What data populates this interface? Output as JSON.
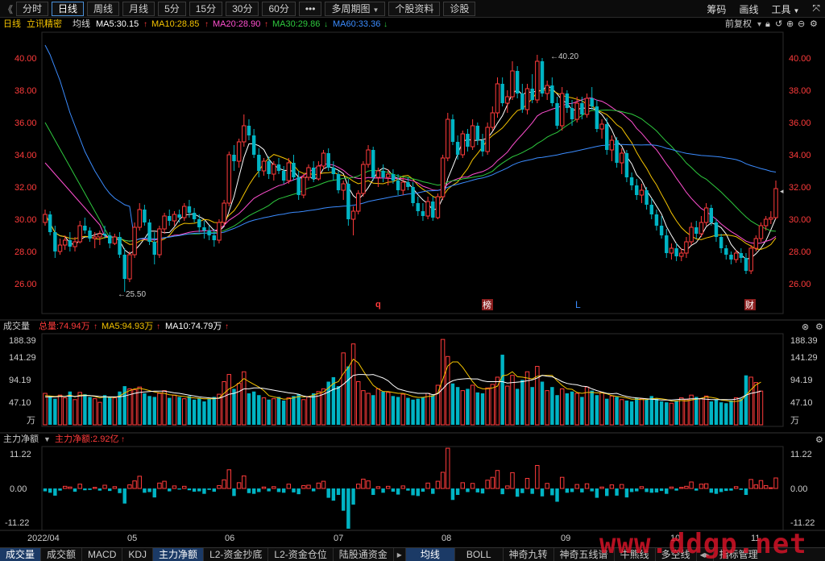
{
  "toolbar": {
    "back_label": "《",
    "tabs": [
      {
        "label": "分时"
      },
      {
        "label": "日线"
      },
      {
        "label": "周线"
      },
      {
        "label": "月线"
      },
      {
        "label": "5分"
      },
      {
        "label": "15分"
      },
      {
        "label": "30分"
      },
      {
        "label": "60分"
      },
      {
        "label": "•••"
      },
      {
        "label": "多周期图"
      },
      {
        "label": "个股资料"
      },
      {
        "label": "诊股"
      }
    ],
    "right": [
      "筹码",
      "画线",
      "工具"
    ]
  },
  "info": {
    "period": "日线",
    "stock": "立讯精密",
    "ma_label": "均线",
    "ma5": "MA5:30.15",
    "ma10": "MA10:28.85",
    "ma20": "MA20:28.90",
    "ma30": "MA30:29.86",
    "ma60": "MA60:33.36",
    "fq": "前复权"
  },
  "price_axis": [
    "40.00",
    "38.00",
    "36.00",
    "34.00",
    "32.00",
    "30.00",
    "28.00",
    "26.00"
  ],
  "price_annotations": {
    "high": "40.20",
    "low": "25.50"
  },
  "event_markers": [
    {
      "text": "q"
    },
    {
      "text": "榜"
    },
    {
      "text": "L"
    },
    {
      "text": "财"
    }
  ],
  "volume_panel": {
    "title": "成交量",
    "total": "总量:74.94万",
    "ma5": "MA5:94.93万",
    "ma10": "MA10:74.79万",
    "axis": [
      "188.39",
      "141.29",
      "94.19",
      "47.10",
      "万"
    ]
  },
  "flow_panel": {
    "title": "主力净额",
    "value": "主力净额:2.92亿",
    "axis": [
      "11.22",
      "0.00",
      "-11.22"
    ]
  },
  "date_axis": [
    "2022/04",
    "05",
    "06",
    "07",
    "08",
    "09",
    "10",
    "11"
  ],
  "bottom_tabs": [
    {
      "label": "成交量"
    },
    {
      "label": "成交额"
    },
    {
      "label": "MACD"
    },
    {
      "label": "KDJ"
    },
    {
      "label": "主力净额"
    },
    {
      "label": "L2-资金抄底"
    },
    {
      "label": "L2-资金仓位"
    },
    {
      "label": "陆股通资金"
    },
    {
      "label": "均线"
    },
    {
      "label": "BOLL"
    },
    {
      "label": "神奇九转"
    },
    {
      "label": "神奇五线谱"
    },
    {
      "label": "牛熊线"
    },
    {
      "label": "多空线"
    },
    {
      "label": "指标管理"
    }
  ],
  "watermark": "www.ddgp.net",
  "colors": {
    "up": "#ff3b3b",
    "down": "#00b4c4",
    "ma5": "#ffffff",
    "ma10": "#f5c400",
    "ma20": "#ff4fd0",
    "ma30": "#2ec93e",
    "ma60": "#3b8cff"
  },
  "chart_data": {
    "type": "candlestick",
    "price_range": [
      25,
      41
    ],
    "x_start": "2022/04",
    "candles": [
      [
        29.8,
        30.6,
        29.6,
        30.3
      ],
      [
        30.3,
        30.5,
        29.0,
        29.2
      ],
      [
        29.2,
        29.6,
        27.6,
        28.0
      ],
      [
        28.0,
        28.8,
        27.8,
        28.4
      ],
      [
        28.4,
        29.0,
        28.1,
        28.7
      ],
      [
        28.7,
        29.2,
        28.0,
        28.3
      ],
      [
        28.3,
        28.9,
        28.0,
        28.6
      ],
      [
        28.6,
        29.9,
        28.5,
        29.6
      ],
      [
        29.6,
        30.1,
        29.1,
        29.3
      ],
      [
        29.3,
        29.5,
        28.6,
        28.8
      ],
      [
        28.8,
        29.2,
        28.2,
        28.9
      ],
      [
        28.9,
        29.3,
        28.4,
        29.1
      ],
      [
        29.1,
        29.6,
        28.8,
        29.0
      ],
      [
        29.0,
        29.2,
        28.2,
        28.5
      ],
      [
        28.5,
        29.1,
        28.4,
        28.9
      ],
      [
        28.9,
        29.2,
        27.6,
        27.8
      ],
      [
        27.8,
        28.2,
        25.5,
        26.3
      ],
      [
        26.3,
        28.0,
        26.1,
        27.8
      ],
      [
        27.8,
        29.8,
        27.6,
        29.5
      ],
      [
        29.5,
        31.0,
        29.3,
        30.6
      ],
      [
        30.6,
        30.9,
        29.6,
        29.8
      ],
      [
        29.8,
        30.0,
        28.4,
        28.6
      ],
      [
        28.6,
        29.2,
        27.2,
        27.8
      ],
      [
        27.8,
        29.6,
        27.6,
        29.4
      ],
      [
        29.4,
        30.4,
        29.1,
        30.2
      ],
      [
        30.2,
        30.6,
        29.6,
        29.9
      ],
      [
        29.9,
        30.5,
        29.6,
        30.3
      ],
      [
        30.3,
        30.6,
        29.8,
        30.1
      ],
      [
        30.1,
        31.0,
        29.9,
        30.8
      ],
      [
        30.8,
        31.2,
        30.1,
        30.4
      ],
      [
        30.4,
        30.7,
        29.8,
        30.0
      ],
      [
        30.0,
        30.3,
        29.2,
        29.5
      ],
      [
        29.5,
        29.9,
        28.8,
        29.3
      ],
      [
        29.3,
        29.6,
        28.7,
        29.0
      ],
      [
        29.0,
        29.4,
        28.3,
        28.7
      ],
      [
        28.7,
        30.0,
        28.5,
        29.8
      ],
      [
        29.8,
        31.2,
        29.6,
        31.0
      ],
      [
        31.0,
        34.2,
        30.8,
        34.0
      ],
      [
        34.0,
        34.6,
        33.0,
        33.6
      ],
      [
        33.6,
        35.0,
        33.2,
        34.8
      ],
      [
        34.8,
        36.5,
        34.5,
        35.8
      ],
      [
        35.8,
        36.2,
        34.9,
        35.2
      ],
      [
        35.2,
        35.6,
        33.8,
        34.0
      ],
      [
        34.0,
        34.4,
        32.6,
        33.0
      ],
      [
        33.0,
        33.8,
        32.7,
        33.6
      ],
      [
        33.6,
        33.9,
        32.5,
        32.8
      ],
      [
        32.8,
        33.6,
        32.4,
        33.4
      ],
      [
        33.4,
        33.8,
        32.8,
        33.0
      ],
      [
        33.0,
        33.3,
        32.2,
        32.4
      ],
      [
        32.4,
        33.8,
        32.2,
        33.5
      ],
      [
        33.5,
        34.0,
        32.4,
        32.6
      ],
      [
        32.6,
        33.0,
        31.2,
        31.5
      ],
      [
        31.5,
        32.8,
        31.3,
        32.6
      ],
      [
        32.6,
        33.4,
        32.4,
        33.2
      ],
      [
        33.2,
        33.6,
        32.3,
        32.5
      ],
      [
        32.5,
        33.6,
        32.4,
        33.3
      ],
      [
        33.3,
        34.3,
        33.1,
        34.1
      ],
      [
        34.1,
        34.4,
        33.0,
        33.2
      ],
      [
        33.2,
        33.6,
        32.4,
        32.8
      ],
      [
        32.8,
        33.0,
        31.6,
        31.8
      ],
      [
        31.8,
        32.4,
        31.2,
        32.2
      ],
      [
        32.2,
        32.5,
        29.6,
        30.0
      ],
      [
        30.0,
        30.8,
        29.0,
        30.5
      ],
      [
        30.5,
        31.8,
        30.3,
        31.6
      ],
      [
        31.6,
        33.6,
        31.4,
        33.4
      ],
      [
        33.4,
        34.6,
        33.2,
        34.3
      ],
      [
        34.3,
        34.5,
        32.4,
        32.6
      ],
      [
        32.6,
        33.2,
        32.0,
        33.0
      ],
      [
        33.0,
        33.4,
        32.3,
        32.6
      ],
      [
        32.6,
        33.1,
        32.1,
        32.8
      ],
      [
        32.8,
        33.1,
        32.2,
        32.4
      ],
      [
        32.4,
        32.8,
        31.5,
        31.8
      ],
      [
        31.8,
        32.6,
        31.5,
        32.3
      ],
      [
        32.3,
        32.6,
        31.8,
        32.0
      ],
      [
        32.0,
        32.3,
        30.8,
        31.0
      ],
      [
        31.0,
        31.4,
        30.2,
        30.5
      ],
      [
        30.5,
        31.0,
        29.9,
        30.2
      ],
      [
        30.2,
        31.4,
        30.0,
        31.1
      ],
      [
        31.1,
        31.4,
        29.9,
        30.1
      ],
      [
        30.1,
        31.6,
        30.0,
        31.4
      ],
      [
        31.4,
        34.0,
        31.2,
        33.8
      ],
      [
        33.8,
        36.6,
        33.6,
        36.2
      ],
      [
        36.2,
        36.5,
        34.6,
        34.8
      ],
      [
        34.8,
        35.2,
        33.7,
        34.0
      ],
      [
        34.0,
        35.5,
        33.8,
        35.3
      ],
      [
        35.3,
        35.6,
        34.2,
        34.5
      ],
      [
        34.5,
        36.2,
        34.3,
        35.8
      ],
      [
        35.8,
        36.0,
        34.6,
        34.9
      ],
      [
        34.9,
        35.3,
        33.9,
        34.2
      ],
      [
        34.2,
        36.0,
        34.0,
        35.7
      ],
      [
        35.7,
        37.0,
        35.5,
        36.6
      ],
      [
        36.6,
        38.8,
        36.3,
        38.4
      ],
      [
        38.4,
        38.8,
        37.0,
        37.2
      ],
      [
        37.2,
        38.0,
        36.6,
        37.6
      ],
      [
        37.6,
        39.8,
        37.4,
        39.2
      ],
      [
        39.2,
        39.5,
        37.5,
        37.8
      ],
      [
        37.8,
        38.4,
        36.6,
        36.8
      ],
      [
        36.8,
        38.4,
        36.5,
        38.1
      ],
      [
        38.1,
        39.0,
        37.2,
        37.4
      ],
      [
        37.4,
        40.2,
        37.2,
        39.8
      ],
      [
        39.8,
        40.0,
        37.6,
        37.8
      ],
      [
        37.8,
        38.6,
        37.4,
        38.3
      ],
      [
        38.3,
        38.8,
        37.0,
        37.2
      ],
      [
        37.2,
        37.6,
        35.6,
        35.8
      ],
      [
        35.8,
        38.2,
        35.5,
        37.8
      ],
      [
        37.8,
        38.0,
        36.6,
        36.9
      ],
      [
        36.9,
        37.4,
        35.8,
        36.2
      ],
      [
        36.2,
        37.6,
        36.0,
        37.2
      ],
      [
        37.2,
        37.6,
        36.2,
        36.5
      ],
      [
        36.5,
        37.8,
        36.3,
        37.5
      ],
      [
        37.5,
        38.2,
        36.8,
        37.0
      ],
      [
        37.0,
        37.4,
        35.4,
        35.6
      ],
      [
        35.6,
        36.2,
        35.0,
        35.9
      ],
      [
        35.9,
        36.3,
        34.0,
        34.3
      ],
      [
        34.3,
        35.2,
        33.6,
        34.9
      ],
      [
        34.9,
        35.1,
        33.2,
        33.5
      ],
      [
        33.5,
        34.4,
        32.8,
        34.1
      ],
      [
        34.1,
        34.3,
        32.3,
        32.6
      ],
      [
        32.6,
        32.9,
        31.8,
        32.1
      ],
      [
        32.1,
        32.5,
        31.2,
        31.5
      ],
      [
        31.5,
        32.2,
        31.0,
        31.8
      ],
      [
        31.8,
        32.0,
        30.6,
        30.9
      ],
      [
        30.9,
        31.3,
        30.0,
        30.3
      ],
      [
        30.3,
        30.6,
        29.3,
        29.6
      ],
      [
        29.6,
        30.2,
        28.8,
        29.0
      ],
      [
        29.0,
        29.4,
        27.6,
        27.9
      ],
      [
        27.9,
        28.5,
        27.5,
        28.2
      ],
      [
        28.2,
        28.5,
        27.4,
        27.7
      ],
      [
        27.7,
        28.2,
        27.4,
        27.9
      ],
      [
        27.9,
        28.9,
        27.6,
        28.6
      ],
      [
        28.6,
        29.8,
        28.4,
        29.5
      ],
      [
        29.5,
        29.9,
        28.8,
        29.1
      ],
      [
        29.1,
        30.2,
        28.9,
        29.8
      ],
      [
        29.8,
        31.0,
        29.6,
        30.7
      ],
      [
        30.7,
        30.9,
        29.6,
        29.8
      ],
      [
        29.8,
        30.0,
        28.6,
        28.9
      ],
      [
        28.9,
        29.1,
        27.9,
        28.2
      ],
      [
        28.2,
        28.4,
        27.5,
        27.8
      ],
      [
        27.8,
        28.0,
        27.2,
        27.5
      ],
      [
        27.5,
        28.1,
        27.3,
        27.9
      ],
      [
        27.9,
        28.2,
        27.3,
        27.6
      ],
      [
        27.6,
        27.9,
        26.6,
        26.8
      ],
      [
        26.8,
        28.4,
        26.6,
        28.2
      ],
      [
        28.2,
        29.0,
        28.0,
        28.8
      ],
      [
        28.8,
        29.8,
        28.6,
        29.6
      ],
      [
        29.6,
        30.2,
        29.3,
        30.0
      ],
      [
        30.0,
        30.5,
        29.7,
        30.1
      ],
      [
        30.1,
        32.4,
        30.0,
        31.9
      ]
    ],
    "volume": [
      70,
      64,
      58,
      66,
      60,
      74,
      56,
      72,
      68,
      62,
      58,
      50,
      66,
      62,
      60,
      74,
      86,
      80,
      78,
      84,
      70,
      64,
      62,
      70,
      76,
      60,
      66,
      62,
      58,
      64,
      56,
      60,
      52,
      58,
      62,
      68,
      96,
      112,
      80,
      92,
      118,
      70,
      74,
      66,
      60,
      56,
      58,
      62,
      54,
      60,
      64,
      68,
      56,
      62,
      70,
      74,
      80,
      96,
      106,
      86,
      160,
      130,
      180,
      96,
      76,
      70,
      66,
      80,
      74,
      72,
      64,
      62,
      68,
      60,
      56,
      58,
      62,
      70,
      66,
      88,
      190,
      152,
      92,
      84,
      76,
      80,
      88,
      72,
      70,
      82,
      90,
      106,
      156,
      86,
      110,
      80,
      100,
      118,
      84,
      130,
      96,
      76,
      84,
      66,
      80,
      70,
      74,
      70,
      62,
      84,
      76,
      66,
      72,
      58,
      64,
      62,
      56,
      54,
      52,
      60,
      58,
      56,
      64,
      58,
      52,
      50,
      48,
      54,
      60,
      56,
      66,
      62,
      58,
      64,
      52,
      56,
      50,
      48,
      54,
      60,
      58,
      110,
      106,
      94,
      75
    ],
    "volume_ma5": [
      65,
      64,
      63,
      64,
      63,
      66,
      62,
      66,
      66,
      65,
      63,
      60,
      62,
      61,
      61,
      64,
      71,
      76,
      80,
      81,
      79,
      76,
      73,
      71,
      70,
      67,
      66,
      64,
      63,
      61,
      60,
      59,
      58,
      58,
      58,
      60,
      70,
      80,
      85,
      93,
      103,
      96,
      90,
      84,
      76,
      65,
      62,
      60,
      57,
      58,
      60,
      63,
      62,
      63,
      66,
      70,
      73,
      82,
      92,
      96,
      114,
      128,
      146,
      138,
      120,
      103,
      88,
      80,
      74,
      74,
      72,
      70,
      70,
      67,
      63,
      61,
      61,
      63,
      64,
      71,
      101,
      131,
      140,
      140,
      128,
      112,
      96,
      84,
      80,
      80,
      82,
      86,
      109,
      111,
      118,
      107,
      106,
      104,
      102,
      108,
      110,
      110,
      110,
      98,
      88,
      80,
      79,
      72,
      70,
      72,
      72,
      71,
      71,
      69,
      65,
      63,
      62,
      60,
      57,
      57,
      56,
      56,
      58,
      59,
      58,
      56,
      53,
      53,
      54,
      53,
      55,
      57,
      59,
      62,
      61,
      59,
      55,
      54,
      52,
      52,
      54,
      66,
      78,
      89,
      95
    ],
    "volume_ma10": [
      62,
      62,
      62,
      63,
      63,
      64,
      63,
      64,
      65,
      65,
      64,
      63,
      62,
      62,
      62,
      62,
      64,
      67,
      70,
      72,
      73,
      74,
      75,
      75,
      75,
      73,
      71,
      70,
      68,
      66,
      64,
      62,
      61,
      60,
      59,
      59,
      63,
      68,
      70,
      74,
      80,
      80,
      82,
      82,
      81,
      79,
      77,
      75,
      73,
      71,
      70,
      68,
      64,
      62,
      62,
      64,
      68,
      73,
      79,
      82,
      90,
      100,
      110,
      112,
      112,
      111,
      112,
      108,
      104,
      98,
      88,
      80,
      77,
      74,
      72,
      70,
      70,
      70,
      67,
      69,
      80,
      92,
      98,
      101,
      102,
      103,
      102,
      102,
      98,
      96,
      96,
      96,
      96,
      93,
      94,
      95,
      96,
      98,
      100,
      104,
      110,
      108,
      107,
      102,
      96,
      92,
      90,
      89,
      86,
      85,
      80,
      76,
      73,
      70,
      69,
      70,
      66,
      63,
      61,
      60,
      59,
      58,
      57,
      56,
      55,
      55,
      55,
      56,
      57,
      57,
      58,
      58,
      58,
      57,
      56,
      56,
      56,
      56,
      56,
      57,
      60,
      66,
      70,
      72,
      75
    ],
    "net_flow": [
      -0.8,
      -1.2,
      -2.0,
      -0.6,
      0.6,
      0.4,
      -0.9,
      1.2,
      -0.5,
      -0.4,
      0.3,
      -0.6,
      0.9,
      -0.7,
      0.5,
      -1.3,
      -4.2,
      1.0,
      2.1,
      3.4,
      -1.2,
      -1.0,
      -2.5,
      1.5,
      2.0,
      -0.8,
      0.7,
      -0.3,
      0.6,
      -0.5,
      -0.9,
      -0.8,
      -1.5,
      -0.4,
      -0.9,
      0.8,
      2.4,
      5.2,
      -2.1,
      1.6,
      3.5,
      -1.3,
      -1.5,
      -1.0,
      0.4,
      -0.8,
      0.5,
      -1.0,
      -1.2,
      1.2,
      -1.1,
      -1.6,
      0.8,
      0.9,
      -0.8,
      1.5,
      2.0,
      -2.6,
      -3.4,
      -1.8,
      -6.2,
      -11.2,
      -4.5,
      1.2,
      2.6,
      2.1,
      -1.8,
      0.5,
      -1.2,
      0.6,
      -0.9,
      -1.7,
      0.7,
      -0.6,
      -1.9,
      -2.1,
      -0.9,
      1.5,
      -1.5,
      2.0,
      4.5,
      11.2,
      -3.2,
      -1.8,
      1.6,
      -1.0,
      1.4,
      -1.1,
      -1.4,
      2.3,
      3.1,
      5.0,
      -1.6,
      0.7,
      4.4,
      -2.3,
      -1.3,
      2.8,
      -1.5,
      6.4,
      -2.2,
      1.4,
      -1.9,
      -3.7,
      3.1,
      -1.2,
      -1.0,
      1.1,
      -1.1,
      1.3,
      -0.8,
      -2.6,
      0.4,
      -2.1,
      1.0,
      -2.0,
      1.1,
      -2.5,
      -1.0,
      -0.8,
      0.5,
      -1.0,
      -1.2,
      -1.1,
      -0.7,
      -1.5,
      0.4,
      -0.6,
      0.3,
      0.6,
      1.8,
      -0.6,
      1.2,
      1.3,
      -1.2,
      -1.5,
      -1.0,
      -0.7,
      -0.6,
      0.5,
      -0.4,
      -1.8,
      2.5,
      1.0,
      2.2,
      0.8,
      0.2,
      2.92
    ]
  }
}
